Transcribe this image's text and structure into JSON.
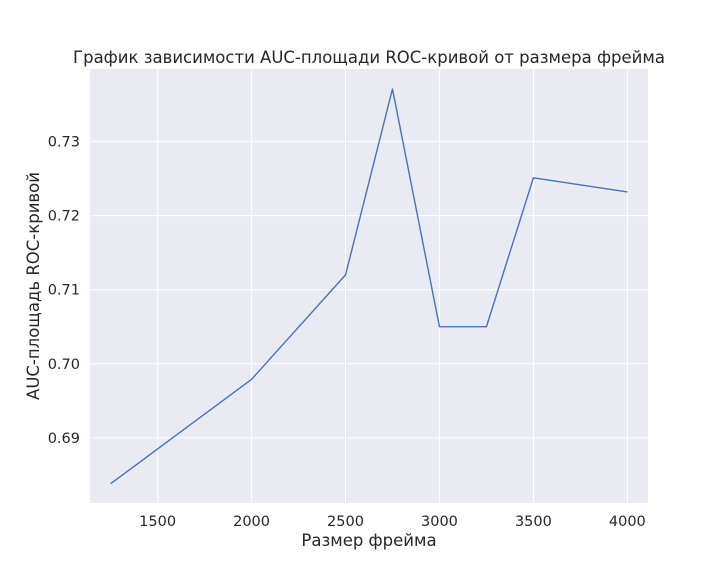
{
  "chart_data": {
    "type": "line",
    "title": "График зависимости AUC-площади ROC-кривой от размера фрейма",
    "xlabel": "Размер фрейма",
    "ylabel": "AUC-площадь ROC-кривой",
    "x": [
      1250,
      2000,
      2500,
      2750,
      3000,
      3250,
      3500,
      4000
    ],
    "series": [
      {
        "values": [
          0.6838,
          0.6979,
          0.712,
          0.7371,
          0.705,
          0.705,
          0.7251,
          0.7232
        ]
      }
    ],
    "xlim": [
      1140,
      4110
    ],
    "ylim": [
      0.6812,
      0.7398
    ],
    "xticks": [
      1500,
      2000,
      2500,
      3000,
      3500,
      4000
    ],
    "yticks": [
      0.69,
      0.7,
      0.71,
      0.72,
      0.73
    ],
    "xtick_labels": [
      "1500",
      "2000",
      "2500",
      "3000",
      "3500",
      "4000"
    ],
    "ytick_labels": [
      "0.69",
      "0.70",
      "0.71",
      "0.72",
      "0.73"
    ],
    "grid": true,
    "colors": {
      "background": "#eaeaf2",
      "grid": "#ffffff",
      "line": "#4c72b0",
      "text": "#262626"
    }
  }
}
